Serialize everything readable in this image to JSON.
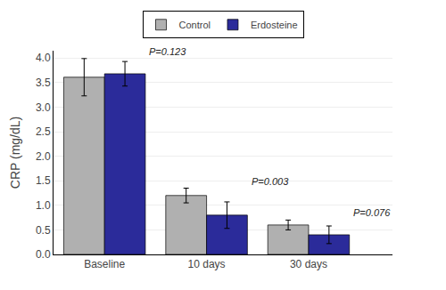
{
  "chart_data": {
    "type": "bar",
    "categories": [
      "Baseline",
      "10 days",
      "30 days"
    ],
    "series": [
      {
        "name": "Control",
        "color": "#b0b0b0",
        "values": [
          3.61,
          1.2,
          0.6
        ],
        "errors": [
          0.38,
          0.15,
          0.1
        ]
      },
      {
        "name": "Erdosteine",
        "color": "#2b2b9a",
        "values": [
          3.68,
          0.8,
          0.4
        ],
        "errors": [
          0.25,
          0.27,
          0.18
        ]
      }
    ],
    "ylabel": "CRP (mg/dL)",
    "ylim": [
      0,
      4.15
    ],
    "yticks": [
      {
        "value": 0,
        "label": "0.0"
      },
      0.5,
      {
        "value": 1.0,
        "label": "1.0"
      },
      1.5,
      {
        "value": 2.0,
        "label": "2.0"
      },
      2.5,
      {
        "value": 3.0,
        "label": "3.0"
      },
      3.5,
      {
        "value": 4.0,
        "label": "4.0"
      }
    ],
    "grid": true,
    "legend": "top",
    "annotations": [
      {
        "text": "P=0.123",
        "x": "Baseline"
      },
      {
        "text": "P=0.003",
        "x": "10 days"
      },
      {
        "text": "P=0.076",
        "x": "30 days"
      }
    ]
  }
}
